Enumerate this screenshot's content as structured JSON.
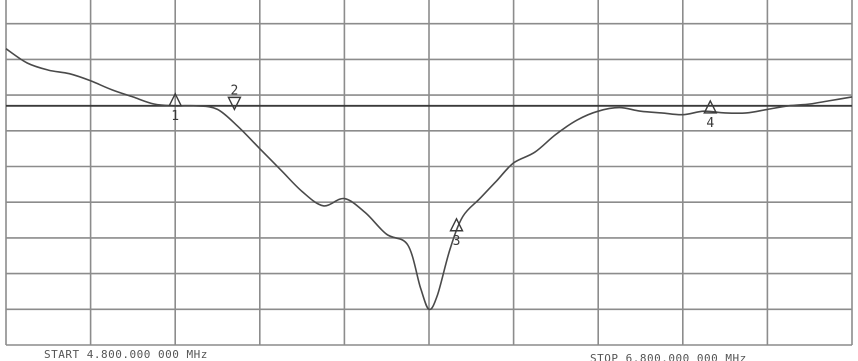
{
  "chart_data": {
    "type": "line",
    "title": "",
    "xlabel": "",
    "ylabel": "",
    "start_label": "START 4.800.000 000 MHz",
    "stop_label": "STOP 6.800.000 000 MHz",
    "xlim": [
      4800,
      6800
    ],
    "ylim": [
      -10,
      0
    ],
    "reference_level": -3.3,
    "grid": true,
    "series": [
      {
        "points": [
          [
            4800,
            -1.7
          ],
          [
            4850,
            -2.1
          ],
          [
            4900,
            -2.3
          ],
          [
            4950,
            -2.4
          ],
          [
            5000,
            -2.6
          ],
          [
            5050,
            -2.85
          ],
          [
            5100,
            -3.05
          ],
          [
            5150,
            -3.25
          ],
          [
            5200,
            -3.3
          ],
          [
            5250,
            -3.3
          ],
          [
            5300,
            -3.4
          ],
          [
            5350,
            -3.9
          ],
          [
            5400,
            -4.5
          ],
          [
            5450,
            -5.1
          ],
          [
            5500,
            -5.7
          ],
          [
            5550,
            -6.1
          ],
          [
            5600,
            -5.9
          ],
          [
            5650,
            -6.3
          ],
          [
            5700,
            -6.9
          ],
          [
            5750,
            -7.2
          ],
          [
            5780,
            -8.4
          ],
          [
            5800,
            -9.0
          ],
          [
            5820,
            -8.6
          ],
          [
            5850,
            -7.3
          ],
          [
            5880,
            -6.4
          ],
          [
            5920,
            -5.9
          ],
          [
            5960,
            -5.4
          ],
          [
            6000,
            -4.9
          ],
          [
            6050,
            -4.6
          ],
          [
            6100,
            -4.1
          ],
          [
            6150,
            -3.7
          ],
          [
            6200,
            -3.45
          ],
          [
            6250,
            -3.35
          ],
          [
            6300,
            -3.45
          ],
          [
            6350,
            -3.5
          ],
          [
            6400,
            -3.55
          ],
          [
            6450,
            -3.45
          ],
          [
            6500,
            -3.5
          ],
          [
            6550,
            -3.5
          ],
          [
            6600,
            -3.4
          ],
          [
            6650,
            -3.3
          ],
          [
            6700,
            -3.25
          ],
          [
            6750,
            -3.15
          ],
          [
            6800,
            -3.05
          ]
        ]
      }
    ],
    "markers": [
      {
        "label": "1",
        "x": 5200,
        "y": -3.3,
        "symbol": "delta",
        "label_pos": "below"
      },
      {
        "label": "2",
        "x": 5340,
        "y": -3.4,
        "symbol": "nabla",
        "label_pos": "above"
      },
      {
        "label": "3",
        "x": 5865,
        "y": -6.8,
        "symbol": "delta",
        "label_pos": "below"
      },
      {
        "label": "4",
        "x": 6465,
        "y": -3.5,
        "symbol": "delta",
        "label_pos": "below"
      }
    ]
  }
}
